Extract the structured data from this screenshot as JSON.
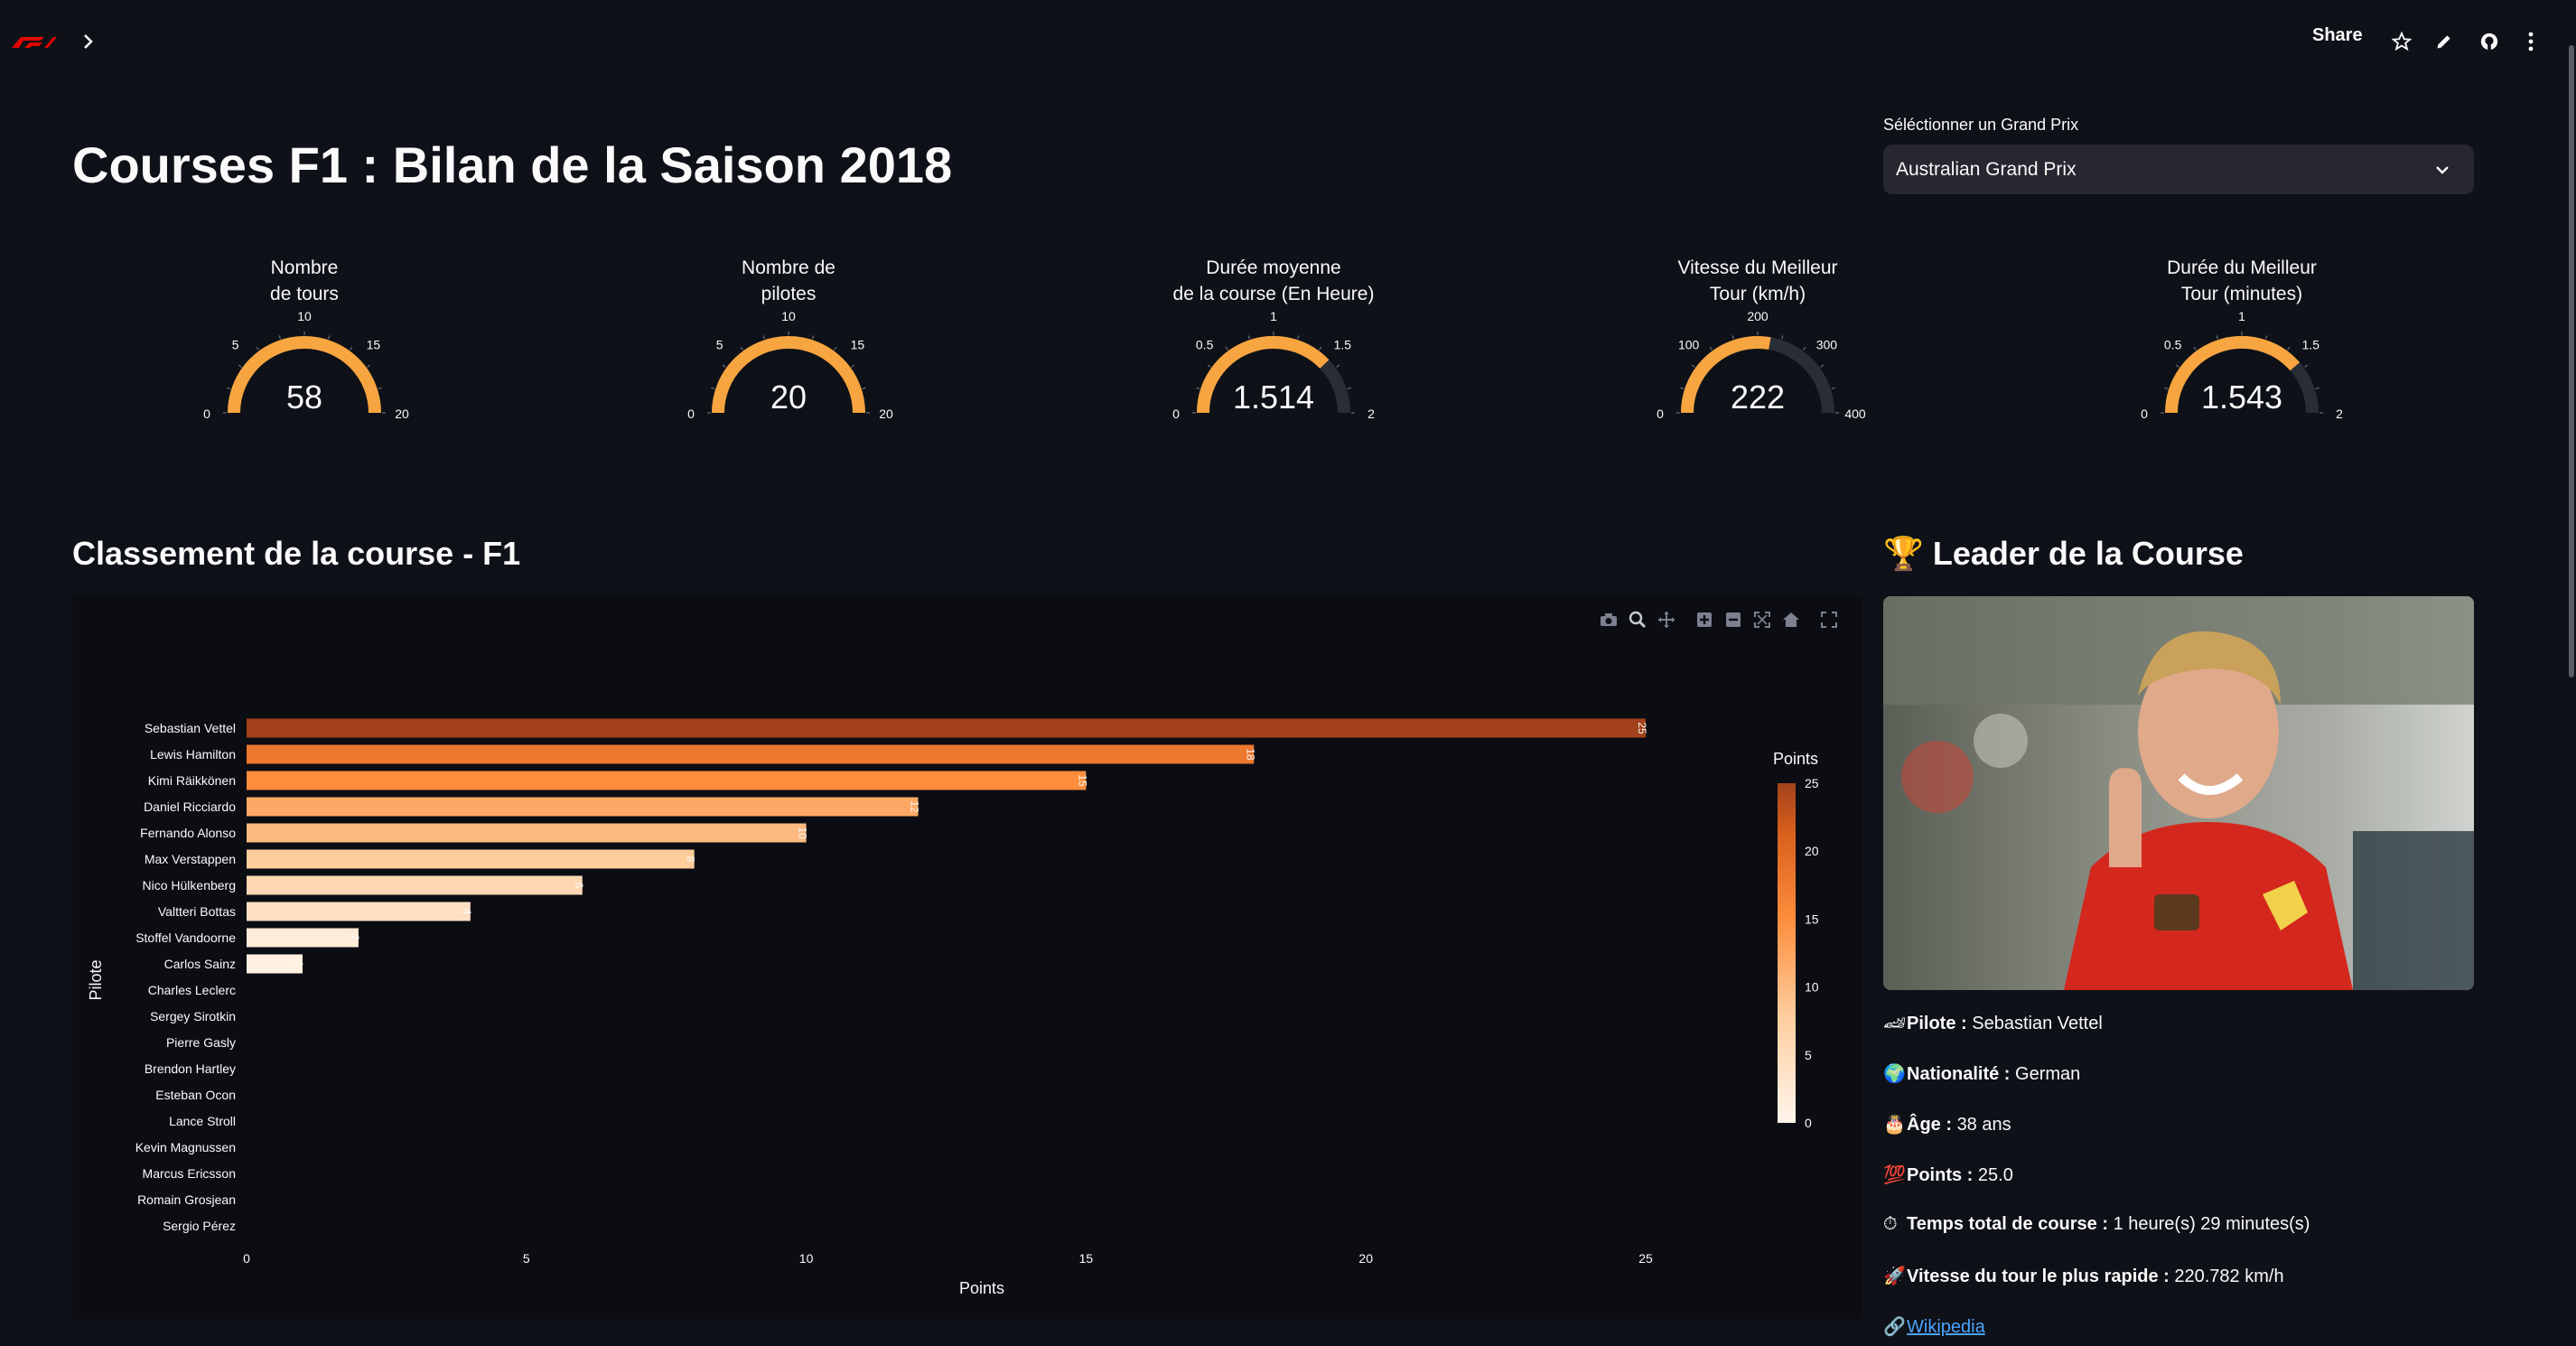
{
  "topbar": {
    "logo_icon": "f1-logo-icon",
    "share_label": "Share",
    "icons": [
      "chevron-right-icon",
      "star-icon",
      "pencil-icon",
      "github-icon",
      "more-vertical-icon"
    ]
  },
  "header": {
    "title": "Courses F1 : Bilan de la Saison 2018"
  },
  "gp_selector": {
    "label": "Séléctionner un Grand Prix",
    "value": "Australian Grand Prix"
  },
  "gauges": [
    {
      "title_line1": "Nombre",
      "title_line2": "de tours",
      "value": 58,
      "display": "58",
      "min": 0,
      "max": 20,
      "ticks": [
        "0",
        "5",
        "10",
        "15",
        "20"
      ]
    },
    {
      "title_line1": "Nombre de",
      "title_line2": "pilotes",
      "value": 20,
      "display": "20",
      "min": 0,
      "max": 20,
      "ticks": [
        "0",
        "5",
        "10",
        "15",
        "20"
      ]
    },
    {
      "title_line1": "Durée moyenne",
      "title_line2": "de la course (En Heure)",
      "value": 1.514,
      "display": "1.514",
      "min": 0,
      "max": 2,
      "ticks": [
        "0",
        "0.5",
        "1",
        "1.5",
        "2"
      ]
    },
    {
      "title_line1": "Vitesse du Meilleur",
      "title_line2": "Tour (km/h)",
      "value": 222,
      "display": "222",
      "min": 0,
      "max": 400,
      "ticks": [
        "0",
        "100",
        "200",
        "300",
        "400"
      ]
    },
    {
      "title_line1": "Durée du Meilleur",
      "title_line2": "Tour (minutes)",
      "value": 1.543,
      "display": "1.543",
      "min": 0,
      "max": 2,
      "ticks": [
        "0",
        "0.5",
        "1",
        "1.5",
        "2"
      ]
    }
  ],
  "ranking": {
    "title": "Classement de la course - F1"
  },
  "chart_data": {
    "type": "bar",
    "orientation": "horizontal",
    "xlabel": "Points",
    "ylabel": "Pilote",
    "xlim": [
      0,
      25
    ],
    "xticks": [
      0,
      5,
      10,
      15,
      20,
      25
    ],
    "colorbar": {
      "title": "Points",
      "ticks": [
        0,
        5,
        10,
        15,
        20,
        25
      ]
    },
    "categories": [
      "Sebastian Vettel",
      "Lewis Hamilton",
      "Kimi Räikkönen",
      "Daniel Ricciardo",
      "Fernando Alonso",
      "Max Verstappen",
      "Nico Hülkenberg",
      "Valtteri Bottas",
      "Stoffel Vandoorne",
      "Carlos Sainz",
      "Charles Leclerc",
      "Sergey Sirotkin",
      "Pierre Gasly",
      "Brendon Hartley",
      "Esteban Ocon",
      "Lance Stroll",
      "Kevin Magnussen",
      "Marcus Ericsson",
      "Romain Grosjean",
      "Sergio Pérez"
    ],
    "values": [
      25,
      18,
      15,
      12,
      10,
      8,
      6,
      4,
      2,
      1,
      0,
      0,
      0,
      0,
      0,
      0,
      0,
      0,
      0,
      0
    ]
  },
  "leader": {
    "title": "🏆 Leader de la Course",
    "photo_alt": "Sebastian Vettel",
    "pilote_label": "Pilote :",
    "pilote_value": "Sebastian Vettel",
    "nationalite_label": "Nationalité :",
    "nationalite_value": "German",
    "age_label": "Âge :",
    "age_value": "38 ans",
    "points_label": "Points :",
    "points_value": "25.0",
    "temps_label": "Temps total de course :",
    "temps_value": "1 heure(s) 29 minutes(s)",
    "vitesse_label": "Vitesse du tour le plus rapide :",
    "vitesse_value": "220.782 km/h",
    "wiki_label": "Wikipedia"
  },
  "colors": {
    "gauge_bar": "#f7a541",
    "gauge_track": "#2a2d36",
    "background": "#0e1117",
    "panel": "#0b0d13"
  }
}
